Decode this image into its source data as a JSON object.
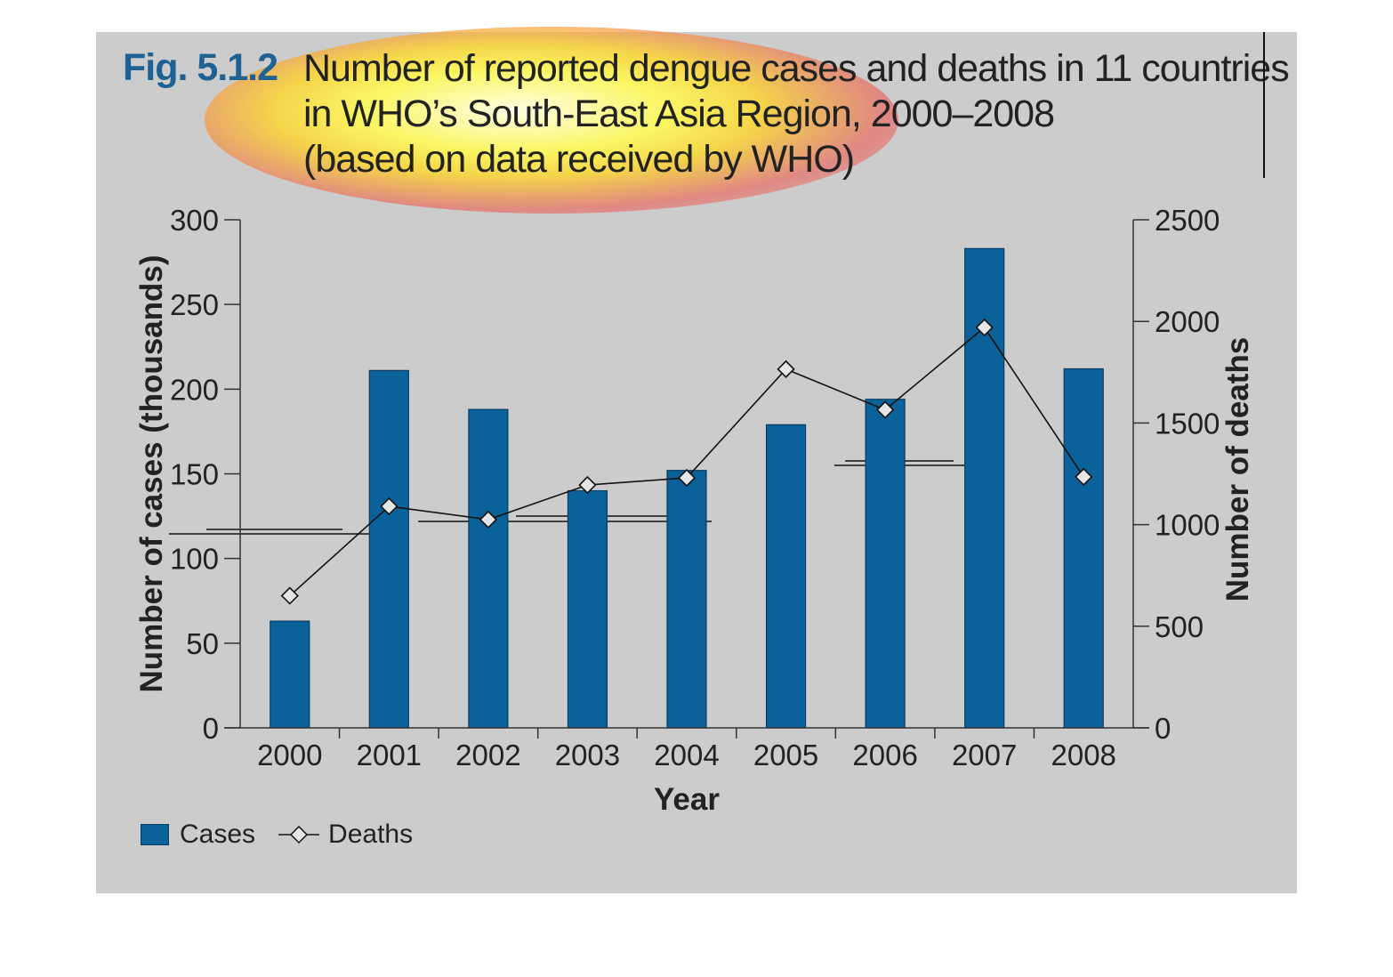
{
  "figure": {
    "label": "Fig. 5.1.2",
    "title_lines": [
      "Number of reported dengue cases and deaths in 11 countries",
      "in WHO’s South-East Asia Region, 2000–2008",
      "(based on data received by WHO)"
    ]
  },
  "legend": {
    "cases_label": "Cases",
    "deaths_label": "Deaths"
  },
  "colors": {
    "bar": "#0b6199",
    "bar_edge": "#0a3d62",
    "line": "#111111",
    "marker_fill": "#e6e6e6",
    "panel": "#cccccc",
    "fig_label": "#1f6193"
  },
  "chart_data": {
    "type": "bar",
    "categories": [
      "2000",
      "2001",
      "2002",
      "2003",
      "2004",
      "2005",
      "2006",
      "2007",
      "2008"
    ],
    "xlabel": "Year",
    "ylabel": "Number of cases (thousands)",
    "y2label": "Number of deaths",
    "ylim": [
      0,
      300
    ],
    "y2lim": [
      0,
      2500
    ],
    "yticks": [
      0,
      50,
      100,
      150,
      200,
      250,
      300
    ],
    "y2ticks": [
      0,
      500,
      1000,
      1500,
      2000,
      2500
    ],
    "grid": false,
    "legend_position": "bottom-left",
    "series": [
      {
        "name": "Cases",
        "type": "bar",
        "axis": "left",
        "values": [
          63,
          211,
          188,
          140,
          152,
          179,
          194,
          283,
          212
        ]
      },
      {
        "name": "Deaths",
        "type": "line",
        "axis": "right",
        "marker": "diamond",
        "values": [
          650,
          1090,
          1025,
          1195,
          1230,
          1765,
          1565,
          1970,
          1235
        ]
      }
    ]
  }
}
